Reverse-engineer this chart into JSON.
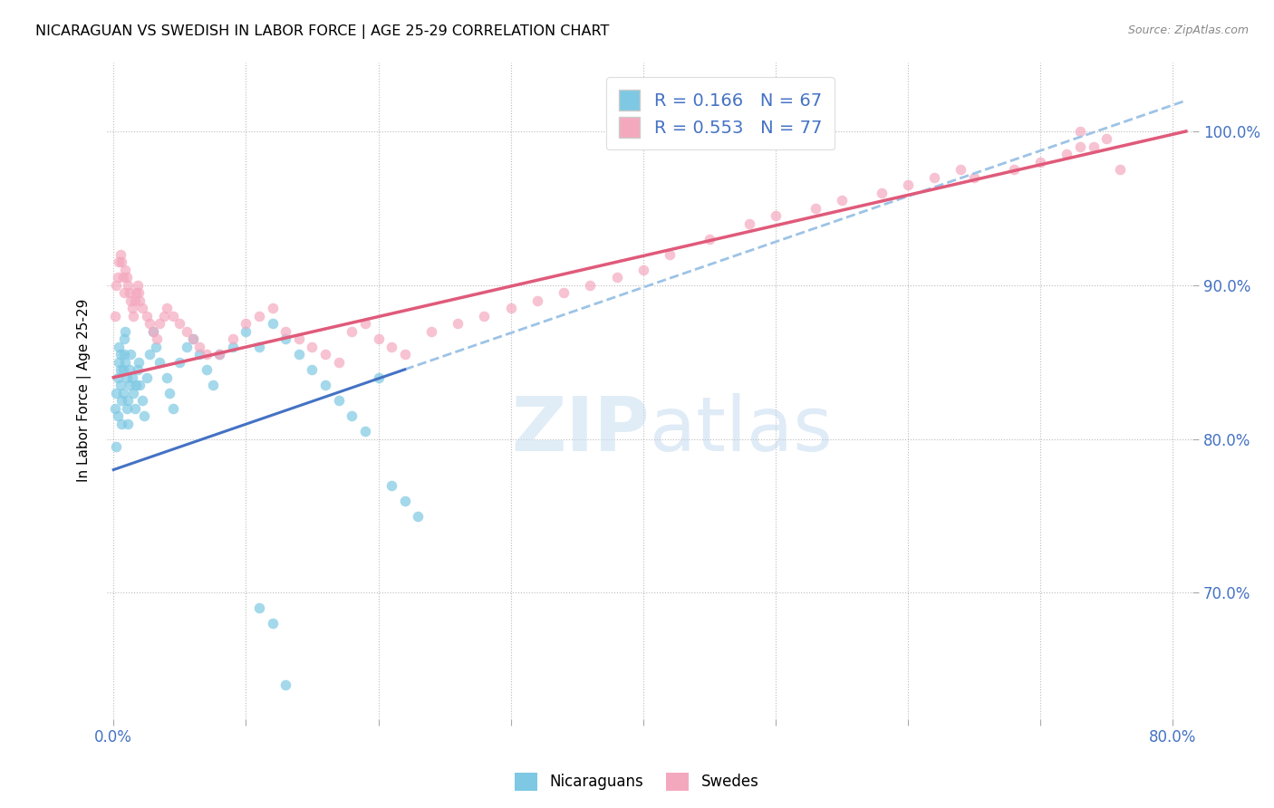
{
  "title": "NICARAGUAN VS SWEDISH IN LABOR FORCE | AGE 25-29 CORRELATION CHART",
  "source": "Source: ZipAtlas.com",
  "ylabel": "In Labor Force | Age 25-29",
  "r_blue": 0.166,
  "n_blue": 67,
  "r_pink": 0.553,
  "n_pink": 77,
  "blue_color": "#7ec8e3",
  "pink_color": "#f4a8be",
  "trendline_blue_solid": "#4472c4",
  "trendline_blue_dashed": "#9dc3e6",
  "trendline_pink_solid": "#e05a7a",
  "watermark_zip": "ZIP",
  "watermark_atlas": "atlas",
  "xlim": [
    -0.005,
    0.815
  ],
  "ylim": [
    0.618,
    1.045
  ],
  "yticks": [
    0.7,
    0.8,
    0.9,
    1.0
  ],
  "xticks": [
    0.0,
    0.1,
    0.2,
    0.3,
    0.4,
    0.5,
    0.6,
    0.7,
    0.8
  ],
  "blue_x": [
    0.001,
    0.002,
    0.002,
    0.003,
    0.003,
    0.004,
    0.004,
    0.005,
    0.005,
    0.005,
    0.006,
    0.006,
    0.007,
    0.007,
    0.008,
    0.008,
    0.009,
    0.009,
    0.01,
    0.01,
    0.011,
    0.011,
    0.012,
    0.012,
    0.013,
    0.014,
    0.015,
    0.016,
    0.017,
    0.018,
    0.019,
    0.02,
    0.022,
    0.023,
    0.025,
    0.027,
    0.03,
    0.032,
    0.035,
    0.04,
    0.042,
    0.045,
    0.05,
    0.055,
    0.06,
    0.065,
    0.07,
    0.075,
    0.08,
    0.09,
    0.1,
    0.11,
    0.12,
    0.13,
    0.14,
    0.15,
    0.16,
    0.17,
    0.18,
    0.19,
    0.2,
    0.21,
    0.22,
    0.23,
    0.11,
    0.12,
    0.13
  ],
  "blue_y": [
    0.82,
    0.83,
    0.795,
    0.815,
    0.84,
    0.85,
    0.86,
    0.855,
    0.845,
    0.835,
    0.825,
    0.81,
    0.83,
    0.845,
    0.855,
    0.865,
    0.87,
    0.85,
    0.84,
    0.82,
    0.81,
    0.825,
    0.835,
    0.845,
    0.855,
    0.84,
    0.83,
    0.82,
    0.835,
    0.845,
    0.85,
    0.835,
    0.825,
    0.815,
    0.84,
    0.855,
    0.87,
    0.86,
    0.85,
    0.84,
    0.83,
    0.82,
    0.85,
    0.86,
    0.865,
    0.855,
    0.845,
    0.835,
    0.855,
    0.86,
    0.87,
    0.86,
    0.875,
    0.865,
    0.855,
    0.845,
    0.835,
    0.825,
    0.815,
    0.805,
    0.84,
    0.77,
    0.76,
    0.75,
    0.69,
    0.68,
    0.64
  ],
  "pink_x": [
    0.001,
    0.002,
    0.003,
    0.004,
    0.005,
    0.006,
    0.007,
    0.008,
    0.009,
    0.01,
    0.011,
    0.012,
    0.013,
    0.014,
    0.015,
    0.016,
    0.017,
    0.018,
    0.019,
    0.02,
    0.022,
    0.025,
    0.027,
    0.03,
    0.033,
    0.035,
    0.038,
    0.04,
    0.045,
    0.05,
    0.055,
    0.06,
    0.065,
    0.07,
    0.08,
    0.09,
    0.1,
    0.11,
    0.12,
    0.13,
    0.14,
    0.15,
    0.16,
    0.17,
    0.18,
    0.19,
    0.2,
    0.21,
    0.22,
    0.24,
    0.26,
    0.28,
    0.3,
    0.32,
    0.34,
    0.36,
    0.38,
    0.4,
    0.42,
    0.45,
    0.48,
    0.5,
    0.53,
    0.55,
    0.58,
    0.6,
    0.62,
    0.64,
    0.65,
    0.68,
    0.7,
    0.72,
    0.73,
    0.74,
    0.75,
    0.76,
    0.73
  ],
  "pink_y": [
    0.88,
    0.9,
    0.905,
    0.915,
    0.92,
    0.915,
    0.905,
    0.895,
    0.91,
    0.905,
    0.9,
    0.895,
    0.89,
    0.885,
    0.88,
    0.89,
    0.895,
    0.9,
    0.895,
    0.89,
    0.885,
    0.88,
    0.875,
    0.87,
    0.865,
    0.875,
    0.88,
    0.885,
    0.88,
    0.875,
    0.87,
    0.865,
    0.86,
    0.855,
    0.855,
    0.865,
    0.875,
    0.88,
    0.885,
    0.87,
    0.865,
    0.86,
    0.855,
    0.85,
    0.87,
    0.875,
    0.865,
    0.86,
    0.855,
    0.87,
    0.875,
    0.88,
    0.885,
    0.89,
    0.895,
    0.9,
    0.905,
    0.91,
    0.92,
    0.93,
    0.94,
    0.945,
    0.95,
    0.955,
    0.96,
    0.965,
    0.97,
    0.975,
    0.97,
    0.975,
    0.98,
    0.985,
    0.99,
    0.99,
    0.995,
    0.975,
    1.0
  ]
}
